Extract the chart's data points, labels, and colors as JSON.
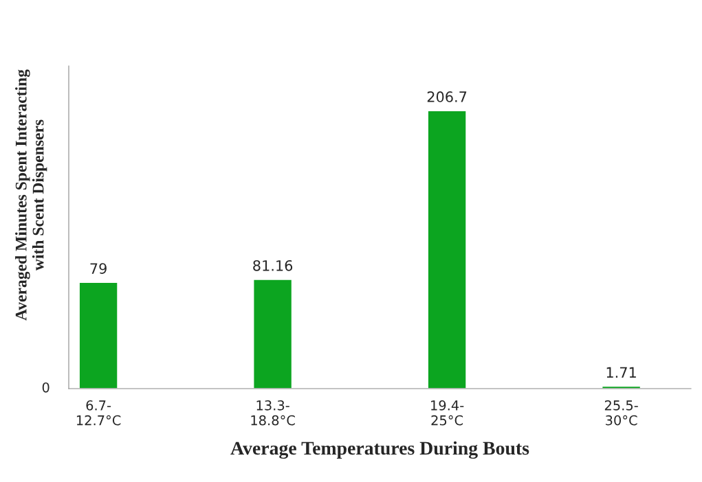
{
  "chart_data": {
    "type": "bar",
    "xlabel": "Average Temperatures During Bouts",
    "ylabel": "Averaged Minutes Spent Interacting\nwith Scent Dispensers",
    "categories": [
      "6.7-\n12.7°C",
      "13.3-\n18.8°C",
      "19.4-\n25°C",
      "25.5-\n30°C"
    ],
    "values": [
      79,
      81.16,
      206.7,
      1.71
    ],
    "color": "#0ca520",
    "data_labels": true,
    "ylim": [
      0,
      240
    ],
    "annotations": [
      "0"
    ],
    "grid": false,
    "legend": false
  }
}
